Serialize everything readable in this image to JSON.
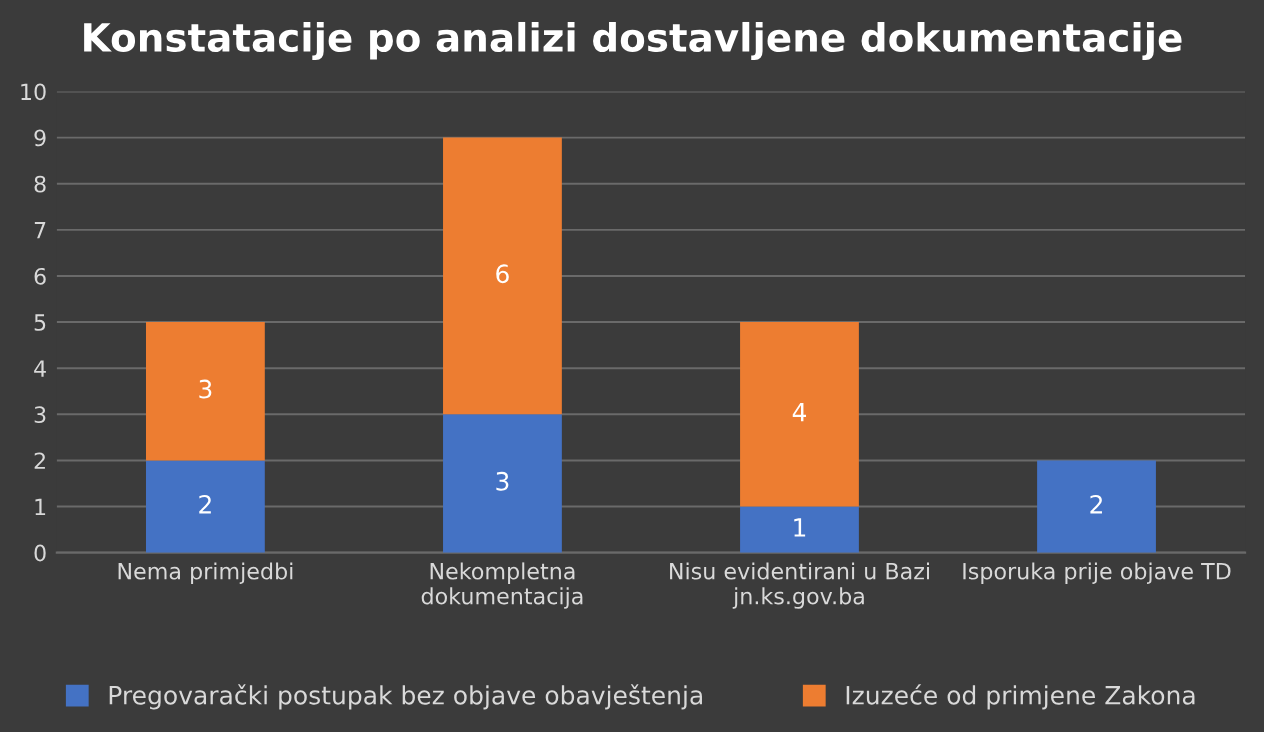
{
  "chart_data": {
    "type": "bar",
    "title": "Konstatacije po analizi dostavljene dokumentacije",
    "stacked": true,
    "categories": [
      "Nema primjedbi",
      "Nekompletna\ndokumentacija",
      "Nisu evidentirani u Bazi\njn.ks.gov.ba",
      "Isporuka prije objave TD"
    ],
    "series": [
      {
        "name": "Pregovarački postupak bez objave obavještenja",
        "color": "#4472c4",
        "values": [
          2,
          3,
          1,
          2
        ]
      },
      {
        "name": "Izuzeće od primjene Zakona",
        "color": "#ed7d31",
        "values": [
          3,
          6,
          4,
          null
        ]
      }
    ],
    "ylim": [
      0,
      10
    ],
    "yticks": [
      0,
      1,
      2,
      3,
      4,
      5,
      6,
      7,
      8,
      9,
      10
    ],
    "grid": "y",
    "legend": "bottom",
    "data_labels": true
  }
}
